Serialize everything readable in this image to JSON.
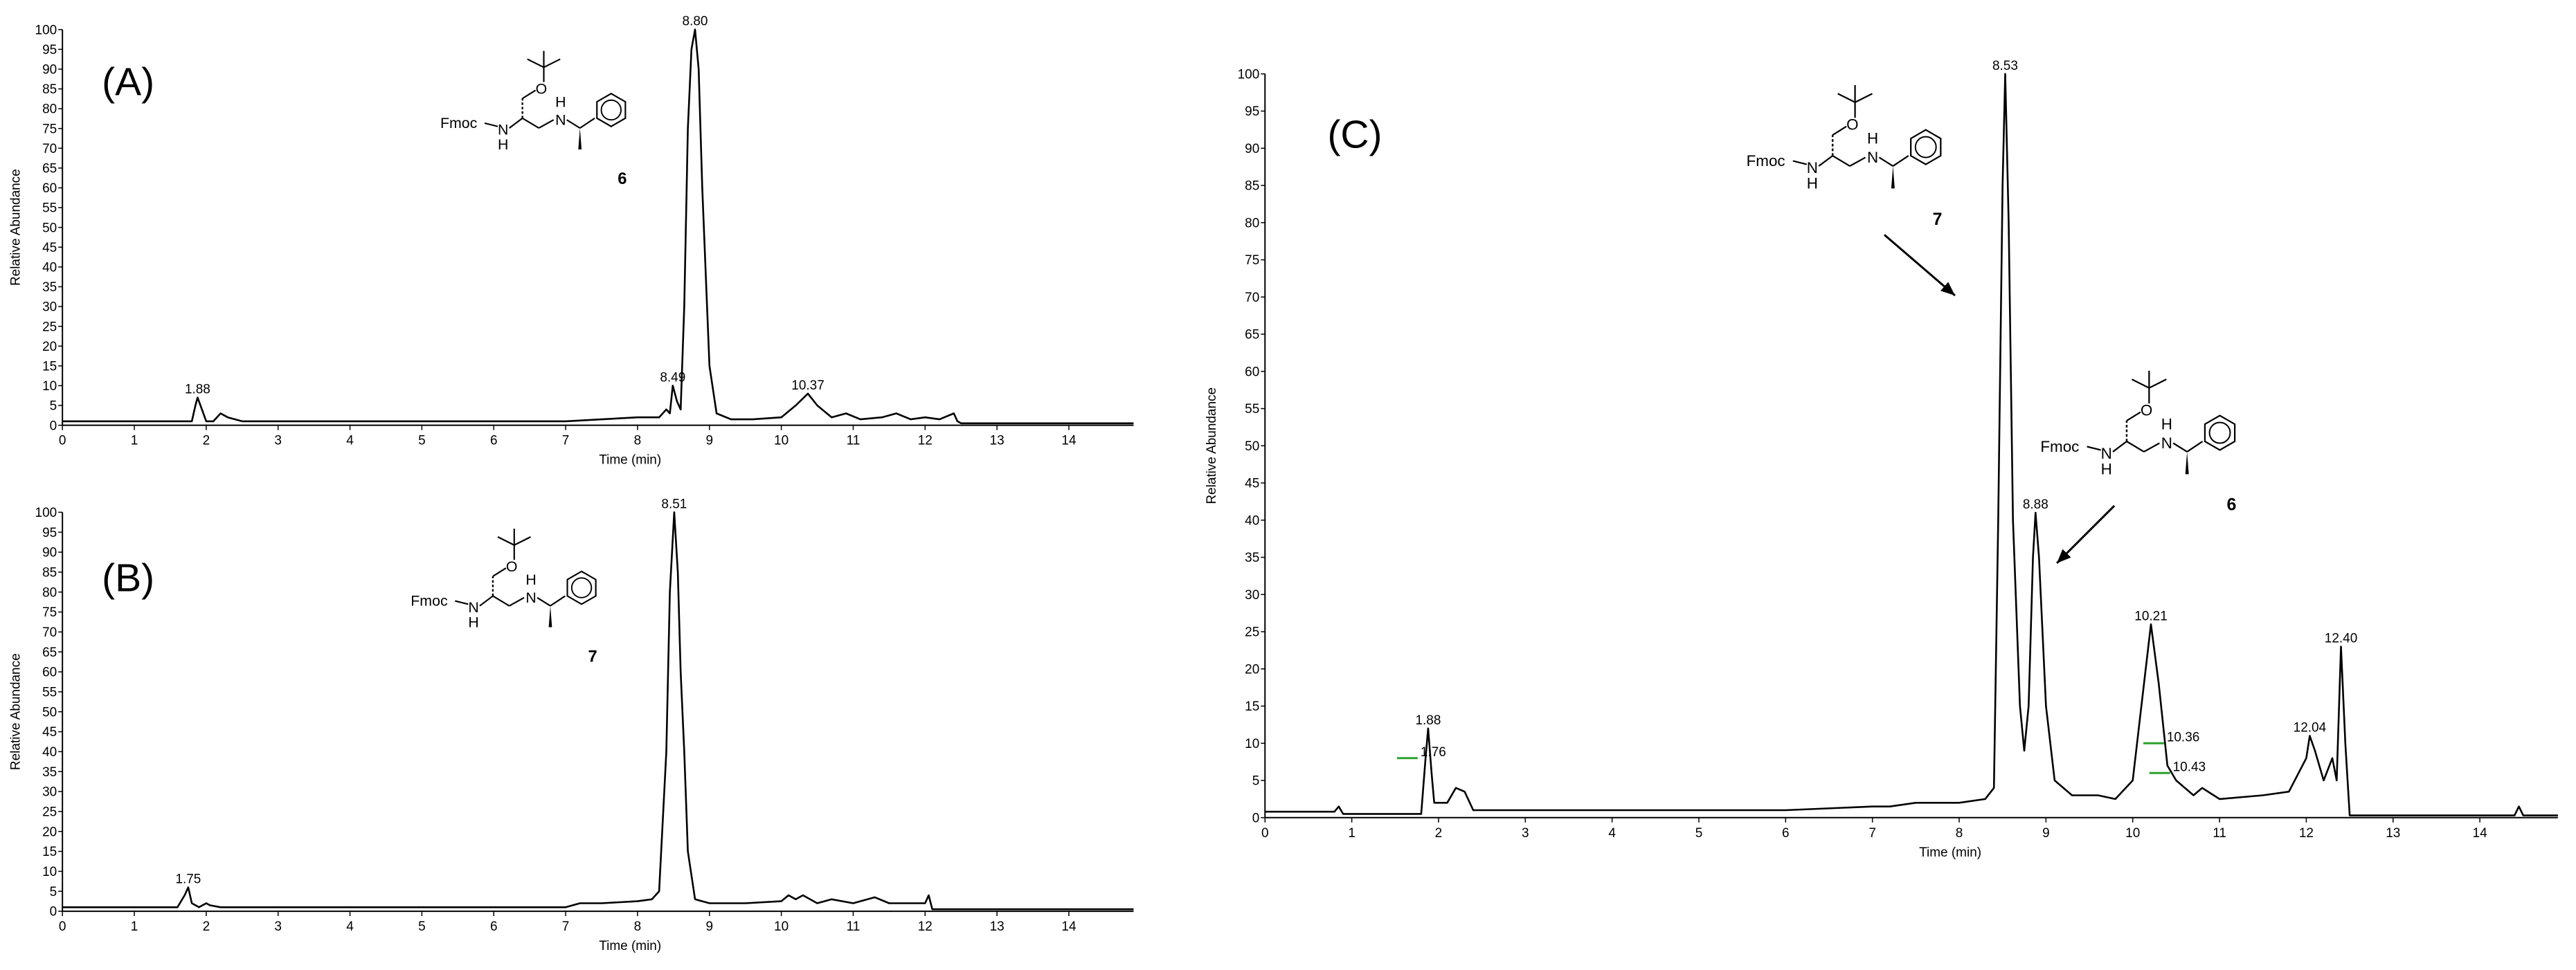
{
  "chart_data": [
    {
      "type": "line",
      "panel": "(A)",
      "x_label": "Time (min)",
      "y_label": "Relative Abundance",
      "color": "#000000",
      "xlim": [
        0,
        14.9
      ],
      "ylim": [
        0,
        100
      ],
      "xticks": [
        0,
        1,
        2,
        3,
        4,
        5,
        6,
        7,
        8,
        9,
        10,
        11,
        12,
        13,
        14
      ],
      "yticks": [
        0,
        5,
        10,
        15,
        20,
        25,
        30,
        35,
        40,
        45,
        50,
        55,
        60,
        65,
        70,
        75,
        80,
        85,
        90,
        95,
        100
      ],
      "x": [
        0,
        1.8,
        1.85,
        1.88,
        1.92,
        2.0,
        2.1,
        2.2,
        2.3,
        2.5,
        4,
        6,
        7,
        7.5,
        8.0,
        8.3,
        8.4,
        8.45,
        8.49,
        8.55,
        8.6,
        8.65,
        8.7,
        8.75,
        8.8,
        8.85,
        8.9,
        9.0,
        9.1,
        9.3,
        9.6,
        10.0,
        10.2,
        10.37,
        10.5,
        10.7,
        10.9,
        11.1,
        11.4,
        11.6,
        11.8,
        12.0,
        12.2,
        12.4,
        12.45,
        12.5,
        13,
        14.9
      ],
      "values": [
        1,
        1,
        5,
        7,
        5,
        1,
        1,
        3,
        2,
        1,
        1,
        1,
        1,
        1.5,
        2,
        2,
        4,
        3,
        10,
        6,
        4,
        30,
        75,
        95,
        100,
        90,
        60,
        15,
        3,
        1.5,
        1.5,
        2,
        5,
        8,
        5,
        2,
        3,
        1.5,
        2,
        3,
        1.5,
        2,
        1.5,
        3,
        1,
        0.5,
        0.5,
        0.5
      ],
      "annotations": [
        {
          "label": "1.88",
          "x": 1.88,
          "y": 7
        },
        {
          "label": "8.49",
          "x": 8.49,
          "y": 10
        },
        {
          "label": "8.80",
          "x": 8.8,
          "y": 100
        },
        {
          "label": "10.37",
          "x": 10.37,
          "y": 8
        }
      ],
      "structures": [
        {
          "fmoc": "Fmoc",
          "n1": "N",
          "h1": "H",
          "o": "O",
          "n2": "N",
          "h2": "H",
          "label": "6"
        }
      ]
    },
    {
      "type": "line",
      "panel": "(B)",
      "x_label": "Time (min)",
      "y_label": "Relative Abundance",
      "color": "#000000",
      "xlim": [
        0,
        14.9
      ],
      "ylim": [
        0,
        100
      ],
      "xticks": [
        0,
        1,
        2,
        3,
        4,
        5,
        6,
        7,
        8,
        9,
        10,
        11,
        12,
        13,
        14
      ],
      "yticks": [
        0,
        5,
        10,
        15,
        20,
        25,
        30,
        35,
        40,
        45,
        50,
        55,
        60,
        65,
        70,
        75,
        80,
        85,
        90,
        95,
        100
      ],
      "x": [
        0,
        1.6,
        1.7,
        1.75,
        1.8,
        1.9,
        2.0,
        2.05,
        2.2,
        3,
        5,
        7,
        7.2,
        7.5,
        8.0,
        8.2,
        8.3,
        8.4,
        8.45,
        8.51,
        8.56,
        8.6,
        8.65,
        8.7,
        8.8,
        9.0,
        9.5,
        10.0,
        10.1,
        10.2,
        10.3,
        10.5,
        10.7,
        11,
        11.3,
        11.5,
        12,
        12.05,
        12.1,
        12.5,
        14.9
      ],
      "values": [
        1,
        1,
        4,
        6,
        2,
        1,
        2,
        1.5,
        1,
        1,
        1,
        1,
        2,
        2,
        2.5,
        3,
        5,
        40,
        80,
        100,
        85,
        60,
        40,
        15,
        3,
        2,
        2,
        2.5,
        4,
        3,
        4,
        2,
        3,
        2,
        3.5,
        2,
        2,
        4,
        0.5,
        0.5,
        0.5
      ],
      "annotations": [
        {
          "label": "1.75",
          "x": 1.75,
          "y": 6
        },
        {
          "label": "8.51",
          "x": 8.51,
          "y": 100
        }
      ],
      "structures": [
        {
          "fmoc": "Fmoc",
          "n1": "N",
          "h1": "H",
          "o": "O",
          "n2": "N",
          "h2": "H",
          "label": "7"
        }
      ]
    },
    {
      "type": "line",
      "panel": "(C)",
      "x_label": "Time (min)",
      "y_label": "Relative Abundance",
      "color": "#000000",
      "xlim": [
        0,
        14.9
      ],
      "ylim": [
        0,
        100
      ],
      "xticks": [
        0,
        1,
        2,
        3,
        4,
        5,
        6,
        7,
        8,
        9,
        10,
        11,
        12,
        13,
        14
      ],
      "yticks": [
        0,
        5,
        10,
        15,
        20,
        25,
        30,
        35,
        40,
        45,
        50,
        55,
        60,
        65,
        70,
        75,
        80,
        85,
        90,
        95,
        100
      ],
      "x": [
        0,
        0.8,
        0.85,
        0.9,
        1.8,
        1.85,
        1.88,
        1.92,
        1.95,
        2.1,
        2.2,
        2.3,
        2.4,
        3,
        5,
        6,
        7,
        7.2,
        7.5,
        8.0,
        8.3,
        8.4,
        8.45,
        8.5,
        8.53,
        8.57,
        8.62,
        8.7,
        8.75,
        8.8,
        8.85,
        8.88,
        8.92,
        9.0,
        9.1,
        9.3,
        9.6,
        9.8,
        10.0,
        10.1,
        10.21,
        10.3,
        10.4,
        10.5,
        10.7,
        10.8,
        11,
        11.5,
        11.8,
        12.0,
        12.04,
        12.1,
        12.2,
        12.3,
        12.35,
        12.4,
        12.45,
        12.5,
        13,
        14.4,
        14.45,
        14.5,
        14.9
      ],
      "values": [
        0.8,
        0.8,
        1.5,
        0.5,
        0.5,
        8,
        12,
        6,
        2,
        2,
        4,
        3.5,
        1,
        1,
        1,
        1,
        1.5,
        1.5,
        2,
        2,
        2.5,
        4,
        40,
        85,
        100,
        80,
        40,
        15,
        9,
        15,
        35,
        41,
        35,
        15,
        5,
        3,
        3,
        2.5,
        5,
        15,
        26,
        18,
        7,
        5,
        3,
        4,
        2.5,
        3,
        3.5,
        8,
        11,
        9,
        5,
        8,
        5,
        23,
        10,
        0.3,
        0.3,
        0.3,
        1.5,
        0.3,
        0.3
      ],
      "annotations": [
        {
          "label": "1.88",
          "x": 1.88,
          "y": 12
        },
        {
          "label": "1.76",
          "x": 1.76,
          "y": 8,
          "color": "#2ca02c"
        },
        {
          "label": "8.53",
          "x": 8.53,
          "y": 100
        },
        {
          "label": "8.88",
          "x": 8.88,
          "y": 41
        },
        {
          "label": "10.21",
          "x": 10.21,
          "y": 26
        },
        {
          "label": "10.36",
          "x": 10.36,
          "y": 10,
          "color": "#2ca02c"
        },
        {
          "label": "10.43",
          "x": 10.43,
          "y": 6,
          "color": "#2ca02c"
        },
        {
          "label": "12.04",
          "x": 12.04,
          "y": 11
        },
        {
          "label": "12.40",
          "x": 12.4,
          "y": 23
        }
      ],
      "structures": [
        {
          "fmoc": "Fmoc",
          "n1": "N",
          "h1": "H",
          "o": "O",
          "n2": "N",
          "h2": "H",
          "label": "7"
        },
        {
          "fmoc": "Fmoc",
          "n1": "N",
          "h1": "H",
          "o": "O",
          "n2": "N",
          "h2": "H",
          "label": "6"
        }
      ]
    }
  ]
}
